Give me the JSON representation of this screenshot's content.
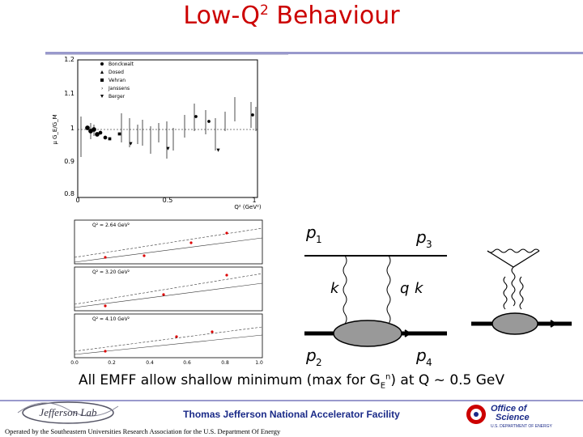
{
  "slide": {
    "title_main": "Low-Q",
    "title_sup": "2",
    "title_rest": " Behaviour",
    "caption_pre": "All EMFF allow shallow minimum (max for G",
    "caption_sub": "E",
    "caption_sup": "n",
    "caption_post": ") at Q ~ 0.5 GeV"
  },
  "top_plot": {
    "y_ticks": [
      "1.2",
      "1.1",
      "1",
      "0.9",
      "0.8"
    ],
    "x_ticks": [
      "0",
      "0.5",
      "1"
    ],
    "x_label": "Q² (GeV²)",
    "legend": [
      "Bonckwalt",
      "Dosed",
      "Vehran",
      "Janssens",
      "Berger"
    ]
  },
  "bottom_plot": {
    "panels": [
      {
        "label": "Q² = 2.64 GeV²"
      },
      {
        "label": "Q² = 3.20 GeV²"
      },
      {
        "label": "Q² = 4.10 GeV²"
      }
    ],
    "x_ticks": [
      "0.0",
      "0.2",
      "0.4",
      "0.6",
      "0.8",
      "1.0"
    ]
  },
  "feynman": {
    "labels": [
      "p",
      "1",
      "p",
      "3",
      "k",
      "q",
      "k",
      "p",
      "2",
      "p",
      "4"
    ]
  },
  "footer": {
    "lab_name": "Thomas Jefferson National Accelerator Facility",
    "operated_by": "Operated by the Southeastern Universities Research Association for the U.S. Department Of Energy",
    "jlab_logo_text": "Jefferson Lab",
    "doe_line1": "Office of",
    "doe_line2": "Science",
    "doe_line3": "U.S. DEPARTMENT OF ENERGY"
  },
  "colors": {
    "title": "#cc0000",
    "accent_rule": "#9999cc",
    "lab_name": "#1a2a88",
    "doe_red": "#cc0000"
  }
}
